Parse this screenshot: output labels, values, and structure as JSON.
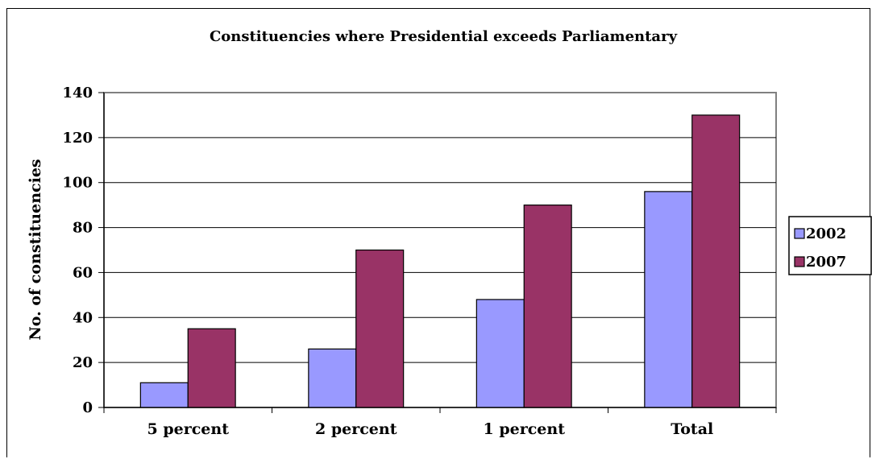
{
  "chart_data": {
    "type": "bar",
    "title": "Constituencies where Presidential exceeds Parliamentary",
    "xlabel": "",
    "ylabel": "No. of constituencies",
    "categories": [
      "5 percent",
      "2 percent",
      "1 percent",
      "Total"
    ],
    "series": [
      {
        "name": "2002",
        "color": "#9999ff",
        "values": [
          11,
          26,
          48,
          96
        ]
      },
      {
        "name": "2007",
        "color": "#993366",
        "values": [
          35,
          70,
          90,
          130
        ]
      }
    ],
    "ylim": [
      0,
      140
    ],
    "yticks": [
      "0",
      "20",
      "40",
      "60",
      "80",
      "100",
      "120",
      "140"
    ],
    "grid": true,
    "legend_position": "right"
  }
}
